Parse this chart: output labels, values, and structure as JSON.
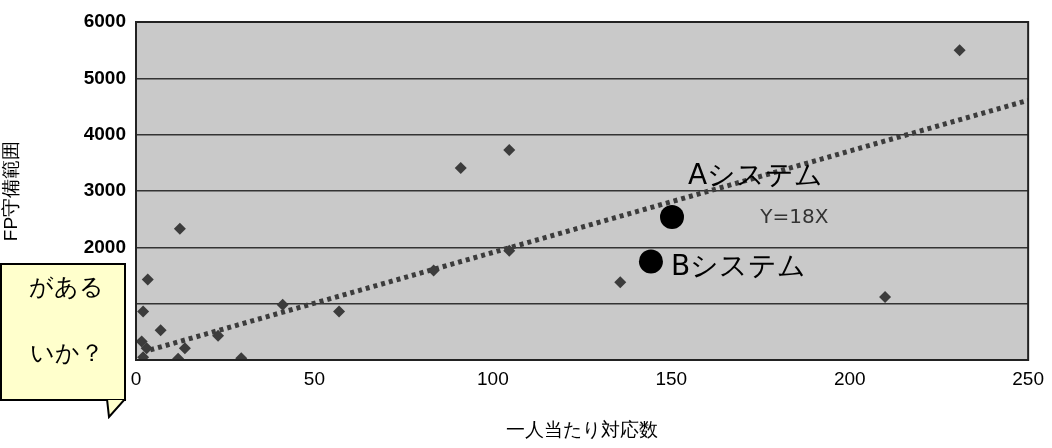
{
  "chart_data": {
    "type": "scatter",
    "xlabel": "一人当たり対応数",
    "ylabel": "FP守備範囲",
    "xlim": [
      0,
      250
    ],
    "xticks": [
      0,
      50,
      100,
      150,
      200,
      250
    ],
    "ylim": [
      0,
      6000
    ],
    "yticks": [
      {
        "value": 0,
        "label": null
      },
      {
        "value": 1000,
        "label": null
      },
      2000,
      3000,
      4000,
      5000,
      6000
    ],
    "grid": "y",
    "legend": false,
    "series": [
      {
        "marker": "diamond",
        "color": "#3c3c3c",
        "x": [
          12.3,
          3.3,
          2.0,
          6.9,
          1.6,
          3.0,
          2.0,
          11.8,
          13.7,
          23.0,
          29.5,
          41.1,
          56.9,
          83.4,
          104.6,
          91.0,
          104.6,
          135.7,
          230.8,
          209.9
        ],
        "values": [
          2330,
          1430,
          860,
          530,
          330,
          210,
          50,
          20,
          210,
          430,
          30,
          980,
          860,
          1590,
          1940,
          3410,
          3730,
          1380,
          5500,
          1120
        ]
      },
      {
        "name": "Aシステム",
        "marker": "circle",
        "color": "#000000",
        "x": [
          150.2
        ],
        "values": [
          2540
        ]
      },
      {
        "name": "Bシステム",
        "marker": "circle",
        "color": "#000000",
        "x": [
          144.3
        ],
        "values": [
          1750
        ]
      },
      {
        "name": "Y=18X",
        "type": "line",
        "line_style": "dotted",
        "color": "#3c3c3c",
        "x": [
          4,
          250
        ],
        "values": [
          180,
          4610
        ]
      }
    ],
    "annotations": [
      "がある",
      "いか？"
    ]
  }
}
